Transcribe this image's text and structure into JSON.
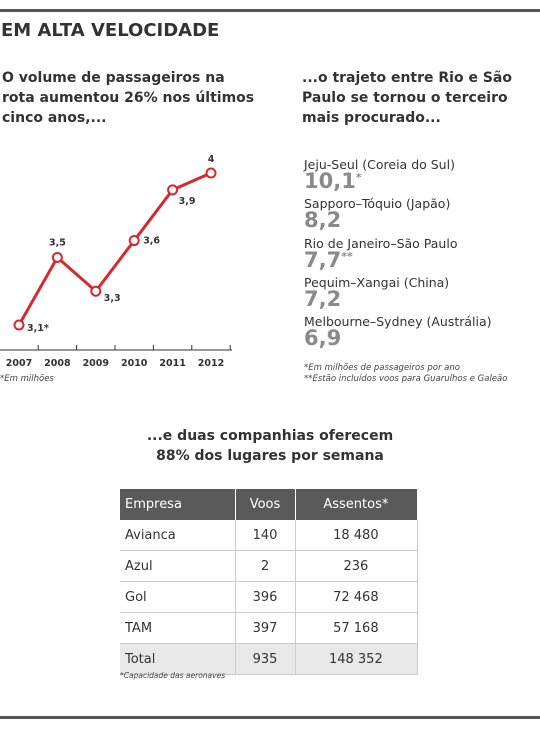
{
  "header": {
    "title": "EM ALTA VELOCIDADE"
  },
  "left_heading": [
    "O volume de passageiros na",
    "rota aumentou 26% nos últimos",
    "cinco anos,..."
  ],
  "right_heading": [
    "...o trajeto entre Rio e São",
    "Paulo se tornou o terceiro",
    "mais procurado..."
  ],
  "chart_data": {
    "type": "line",
    "categories": [
      "2007",
      "2008",
      "2009",
      "2010",
      "2011",
      "2012"
    ],
    "values": [
      3.1,
      3.5,
      3.3,
      3.6,
      3.9,
      4
    ],
    "value_labels": [
      "3,1*",
      "3,5",
      "3,3",
      "3,6",
      "3,9",
      "4"
    ],
    "color": "#d7282f",
    "note": "*Em milhões"
  },
  "ranking": {
    "items": [
      {
        "route": "Jeju-Seul (Coreia do Sul)",
        "value": "10,1",
        "mark": "*"
      },
      {
        "route": "Sapporo–Tóquio (Japão)",
        "value": "8,2"
      },
      {
        "route": "Rio de Janeiro–São Paulo",
        "value": "7,7",
        "mark": "**"
      },
      {
        "route": "Pequim–Xangai (China)",
        "value": "7,2"
      },
      {
        "route": "Melbourne–Sydney (Austrália)",
        "value": "6,9"
      }
    ],
    "notes": [
      "*Em milhões de passageiros por ano",
      "**Estão incluídos voos para Guarulhos e Galeão"
    ]
  },
  "table_heading": [
    "...e duas companhias oferecem",
    "88% dos lugares por semana"
  ],
  "table": {
    "header": [
      "Empresa",
      "Voos",
      "Assentos*"
    ],
    "rows": [
      [
        "Avianca",
        "140",
        "18 480"
      ],
      [
        "Azul",
        "2",
        "236"
      ],
      [
        "Gol",
        "396",
        "72 468"
      ],
      [
        "TAM",
        "397",
        "57 168"
      ],
      [
        "Total",
        "935",
        "148 352"
      ]
    ],
    "note": "*Capacidade das aeronaves"
  }
}
